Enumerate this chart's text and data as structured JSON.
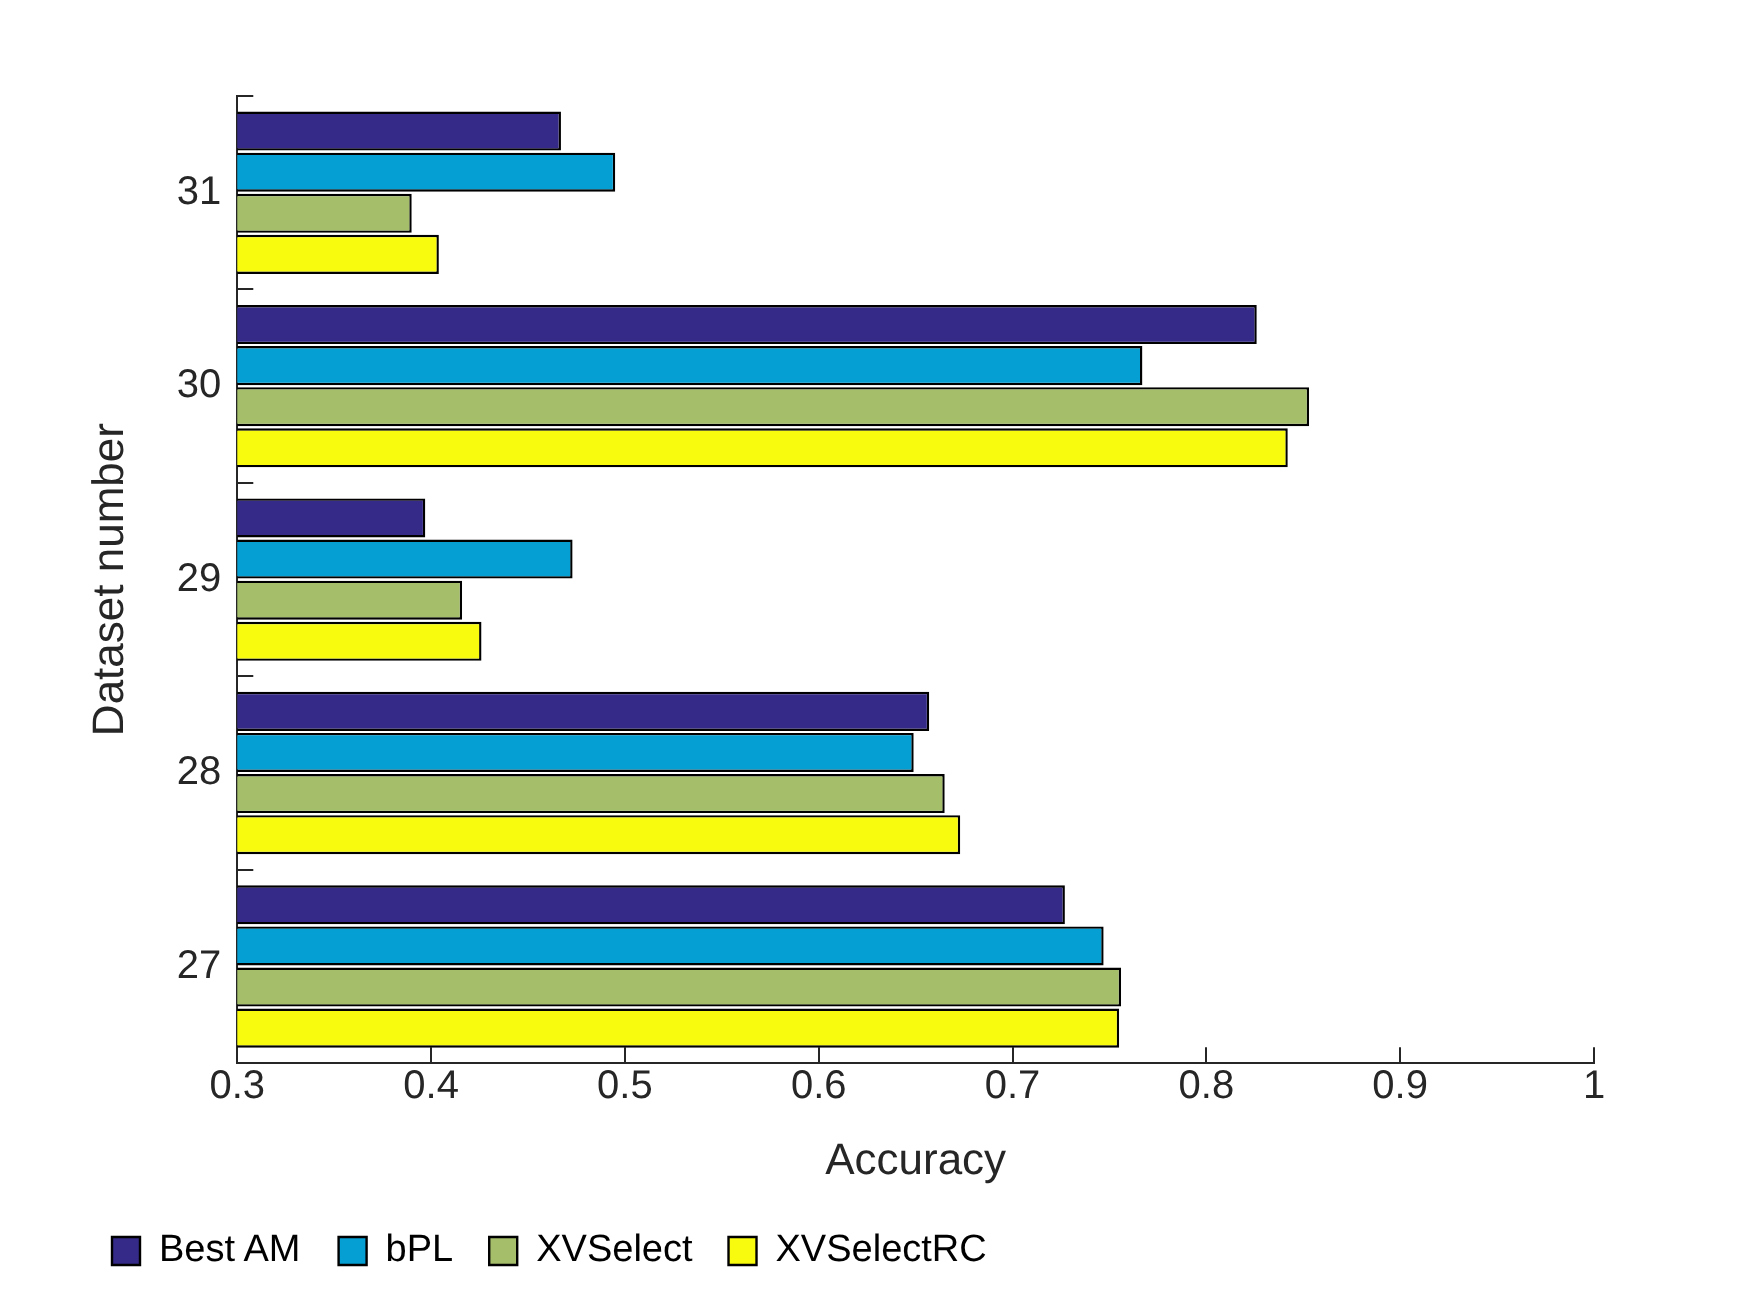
{
  "chart_data": {
    "type": "bar",
    "orientation": "horizontal",
    "xlabel": "Accuracy",
    "ylabel": "Dataset number",
    "categories": [
      "31",
      "30",
      "29",
      "28",
      "27"
    ],
    "series": [
      {
        "name": "Best AM",
        "color": "#352a87",
        "values": [
          0.467,
          0.826,
          0.397,
          0.657,
          0.727
        ]
      },
      {
        "name": "bPL",
        "color": "#069fd4",
        "values": [
          0.495,
          0.767,
          0.473,
          0.649,
          0.747
        ]
      },
      {
        "name": "XVSelect",
        "color": "#a5be6a",
        "values": [
          0.39,
          0.853,
          0.416,
          0.665,
          0.756
        ]
      },
      {
        "name": "XVSelectRC",
        "color": "#f9fb0e",
        "values": [
          0.404,
          0.842,
          0.426,
          0.673,
          0.755
        ]
      }
    ],
    "xlim": [
      0.3,
      1
    ],
    "xticks": [
      0.3,
      0.4,
      0.5,
      0.6,
      0.7,
      0.8,
      0.9,
      1
    ],
    "grid": false,
    "legend": "bottom left"
  }
}
